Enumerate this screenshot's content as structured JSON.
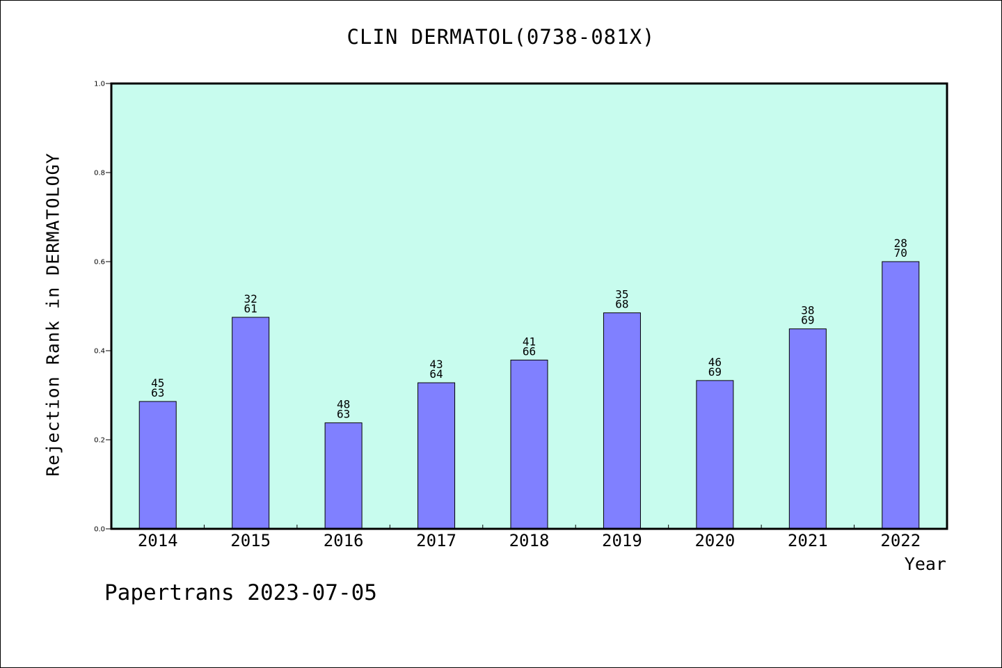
{
  "colors": {
    "plot_background": "#c8fcee",
    "bar_fill": "#8080ff",
    "bar_stroke": "#000000",
    "axis": "#000000"
  },
  "chart_data": {
    "type": "bar",
    "title": "CLIN DERMATOL(0738-081X)",
    "xlabel": "Year",
    "ylabel": "Rejection Rank in DERMATOLOGY",
    "ylim": [
      0,
      1.0
    ],
    "yticks": [
      "0.0",
      "0.2",
      "0.4",
      "0.6",
      "0.8",
      "1.0"
    ],
    "grid": false,
    "categories": [
      "2014",
      "2015",
      "2016",
      "2017",
      "2018",
      "2019",
      "2020",
      "2021",
      "2022"
    ],
    "values": [
      0.286,
      0.475,
      0.238,
      0.328,
      0.379,
      0.485,
      0.333,
      0.449,
      0.6
    ],
    "bar_labels": [
      [
        "45",
        "63"
      ],
      [
        "32",
        "61"
      ],
      [
        "48",
        "63"
      ],
      [
        "43",
        "64"
      ],
      [
        "41",
        "66"
      ],
      [
        "35",
        "68"
      ],
      [
        "46",
        "69"
      ],
      [
        "38",
        "69"
      ],
      [
        "28",
        "70"
      ]
    ]
  },
  "footer": "Papertrans 2023-07-05"
}
